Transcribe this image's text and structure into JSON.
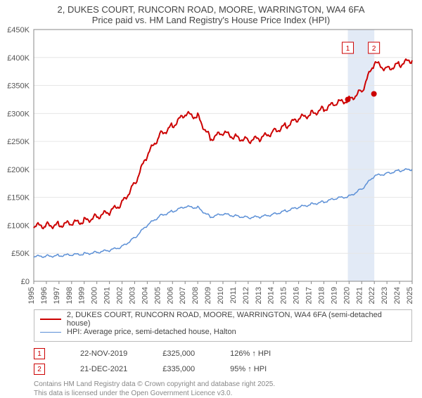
{
  "title1": "2, DUKES COURT, RUNCORN ROAD, MOORE, WARRINGTON, WA4 6FA",
  "title2": "Price paid vs. HM Land Registry's House Price Index (HPI)",
  "chart": {
    "type": "line",
    "background_color": "#ffffff",
    "grid_color": "#e6e6e6",
    "axis_color": "#888888",
    "x_years": [
      1995,
      1996,
      1997,
      1998,
      1999,
      2000,
      2001,
      2002,
      2003,
      2004,
      2005,
      2006,
      2007,
      2008,
      2009,
      2010,
      2011,
      2012,
      2013,
      2014,
      2015,
      2016,
      2017,
      2018,
      2019,
      2020,
      2021,
      2022,
      2023,
      2024,
      2025
    ],
    "ylim": [
      0,
      450000
    ],
    "ytick_step": 50000,
    "ytick_labels": [
      "£0",
      "£50K",
      "£100K",
      "£150K",
      "£200K",
      "£250K",
      "£300K",
      "£350K",
      "£400K",
      "£450K"
    ],
    "band": {
      "start_year": 2019.9,
      "end_year": 2022.0,
      "color": "#e2eaf6"
    },
    "series": [
      {
        "id": "price_paid",
        "label": "2, DUKES COURT, RUNCORN ROAD, MOORE, WARRINGTON, WA4 6FA (semi-detached house)",
        "color": "#cc0000",
        "width": 2,
        "values_by_year": {
          "1995": 98000,
          "1996": 100000,
          "1997": 101000,
          "1998": 103000,
          "1999": 108000,
          "2000": 116000,
          "2001": 123000,
          "2002": 140000,
          "2003": 175000,
          "2004": 225000,
          "2005": 262000,
          "2006": 278000,
          "2007": 298000,
          "2008": 295000,
          "2009": 255000,
          "2010": 265000,
          "2011": 258000,
          "2012": 252000,
          "2013": 255000,
          "2014": 268000,
          "2015": 278000,
          "2016": 290000,
          "2017": 300000,
          "2018": 308000,
          "2019": 318000,
          "2020": 325000,
          "2021": 340000,
          "2022": 390000,
          "2023": 380000,
          "2024": 388000,
          "2025": 395000
        }
      },
      {
        "id": "hpi",
        "label": "HPI: Average price, semi-detached house, Halton",
        "color": "#5b8fd6",
        "width": 1.5,
        "values_by_year": {
          "1995": 44000,
          "1996": 45000,
          "1997": 46000,
          "1998": 47000,
          "1999": 49000,
          "2000": 52000,
          "2001": 55000,
          "2002": 62000,
          "2003": 78000,
          "2004": 100000,
          "2005": 117000,
          "2006": 125000,
          "2007": 133000,
          "2008": 132000,
          "2009": 115000,
          "2010": 120000,
          "2011": 117000,
          "2012": 114000,
          "2013": 115000,
          "2014": 120000,
          "2015": 126000,
          "2016": 132000,
          "2017": 138000,
          "2018": 142000,
          "2019": 148000,
          "2020": 152000,
          "2021": 165000,
          "2022": 188000,
          "2023": 193000,
          "2024": 198000,
          "2025": 200000
        }
      }
    ],
    "sale_markers": [
      {
        "n": 1,
        "year": 2019.9,
        "value": 325000,
        "color": "#cc0000"
      },
      {
        "n": 2,
        "year": 2021.97,
        "value": 335000,
        "color": "#cc0000"
      }
    ]
  },
  "sales": [
    {
      "n": "1",
      "date": "22-NOV-2019",
      "price": "£325,000",
      "hpi_rel": "126% ↑ HPI",
      "box_color": "#cc0000"
    },
    {
      "n": "2",
      "date": "21-DEC-2021",
      "price": "£335,000",
      "hpi_rel": "95% ↑ HPI",
      "box_color": "#cc0000"
    }
  ],
  "footer1": "Contains HM Land Registry data © Crown copyright and database right 2025.",
  "footer2": "This data is licensed under the Open Government Licence v3.0."
}
